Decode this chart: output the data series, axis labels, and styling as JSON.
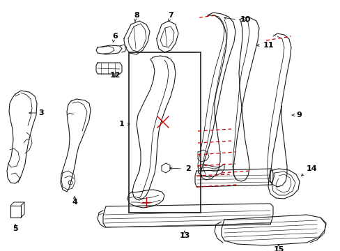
{
  "bg_color": "#ffffff",
  "line_color": "#1a1a1a",
  "red_color": "#cc0000",
  "label_color": "#000000",
  "fig_width": 4.89,
  "fig_height": 3.6,
  "dpi": 100
}
